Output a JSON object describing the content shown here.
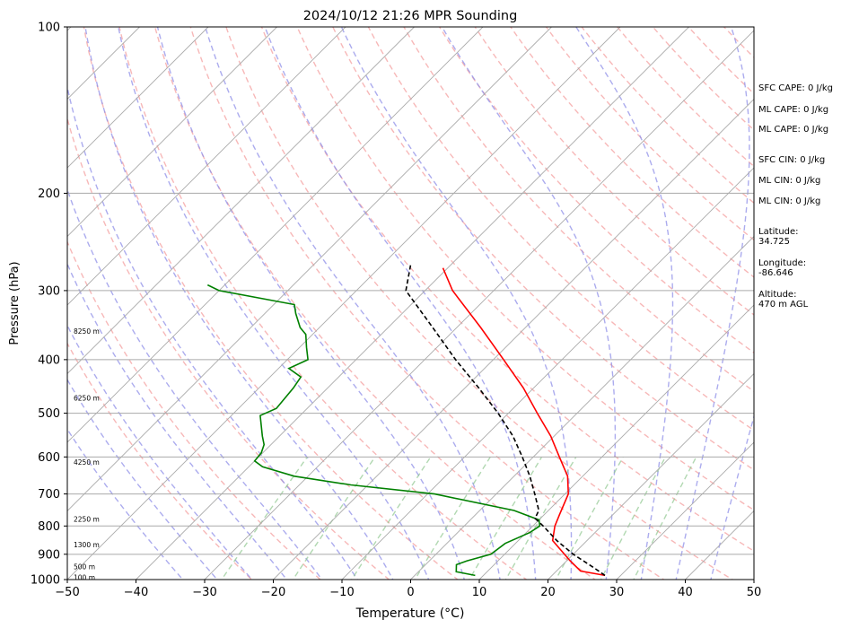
{
  "chart_data": {
    "type": "skew-t log-p sounding",
    "title": "2024/10/12 21:26 MPR Sounding",
    "xlabel": "Temperature (°C)",
    "ylabel": "Pressure (hPa)",
    "xlim": [
      -50,
      50
    ],
    "ylim": [
      1000,
      100
    ],
    "y_scale": "log",
    "grid": true,
    "x_ticks": [
      "−50",
      "−40",
      "−30",
      "−20",
      "−10",
      "0",
      "10",
      "20",
      "30",
      "40",
      "50"
    ],
    "y_ticks": [
      "100",
      "200",
      "300",
      "400",
      "500",
      "600",
      "700",
      "800",
      "900",
      "1000"
    ],
    "height_labels": [
      {
        "text": "100 m",
        "pressure": 990
      },
      {
        "text": "500 m",
        "pressure": 948
      },
      {
        "text": "1300 m",
        "pressure": 865
      },
      {
        "text": "2250 m",
        "pressure": 777
      },
      {
        "text": "4250 m",
        "pressure": 613
      },
      {
        "text": "6250 m",
        "pressure": 469
      },
      {
        "text": "8250 m",
        "pressure": 355
      }
    ],
    "series": [
      {
        "color": "#ff0000",
        "pressure": [
          983,
          965,
          925,
          850,
          800,
          762,
          700,
          650,
          600,
          550,
          500,
          450,
          400,
          350,
          300,
          273
        ],
        "values": [
          27.7,
          23.5,
          20.5,
          15.0,
          13.2,
          12.2,
          10.5,
          7.8,
          3.8,
          -0.5,
          -5.8,
          -11.5,
          -18.5,
          -26.5,
          -36.0,
          -40.7
        ]
      },
      {
        "color": "#008000",
        "pressure": [
          983,
          968,
          940,
          925,
          900,
          860,
          822,
          800,
          780,
          750,
          700,
          674,
          650,
          625,
          610,
          590,
          570,
          550,
          505,
          490,
          450,
          430,
          415,
          400,
          380,
          360,
          350,
          330,
          318,
          300,
          293
        ],
        "values": [
          8.8,
          5.5,
          4.5,
          5.5,
          8.0,
          8.5,
          10.5,
          11.0,
          10.0,
          5.0,
          -9.0,
          -22.5,
          -32.0,
          -38.0,
          -40.0,
          -40.2,
          -41.0,
          -42.5,
          -45.8,
          -44.5,
          -45.0,
          -45.5,
          -48.5,
          -47.0,
          -49.0,
          -51.0,
          -52.8,
          -55.5,
          -57.0,
          -70.0,
          -72.5
        ]
      },
      {
        "color": "#000000",
        "style": "dashed",
        "pressure": [
          983,
          950,
          900,
          850,
          800,
          775,
          750,
          700,
          650,
          600,
          550,
          500,
          450,
          400,
          350,
          300,
          270
        ],
        "values": [
          27.7,
          24.8,
          20.0,
          15.6,
          11.5,
          9.2,
          8.6,
          5.6,
          2.3,
          -1.6,
          -6.0,
          -11.5,
          -18.0,
          -25.5,
          -33.5,
          -42.8,
          -45.8
        ]
      }
    ]
  },
  "stats": {
    "sfc_cape": "SFC CAPE: 0 J/kg",
    "ml_cape_1": "ML CAPE: 0 J/kg",
    "ml_cape_2": "ML CAPE: 0 J/kg",
    "sfc_cin": "SFC CIN: 0 J/kg",
    "ml_cin_1": "ML CIN: 0 J/kg",
    "ml_cin_2": "ML CIN: 0 J/kg",
    "latitude_label": "Latitude:",
    "latitude_value": "34.725",
    "longitude_label": "Longitude:",
    "longitude_value": "-86.646",
    "altitude_label": "Altitude:",
    "altitude_value": "470 m AGL"
  },
  "colors": {
    "dry_adiabat": "#f4a0a0",
    "moist_adiabat": "#9090e8",
    "mixing_ratio": "#90c890",
    "isotherm": "#aaaaaa"
  }
}
